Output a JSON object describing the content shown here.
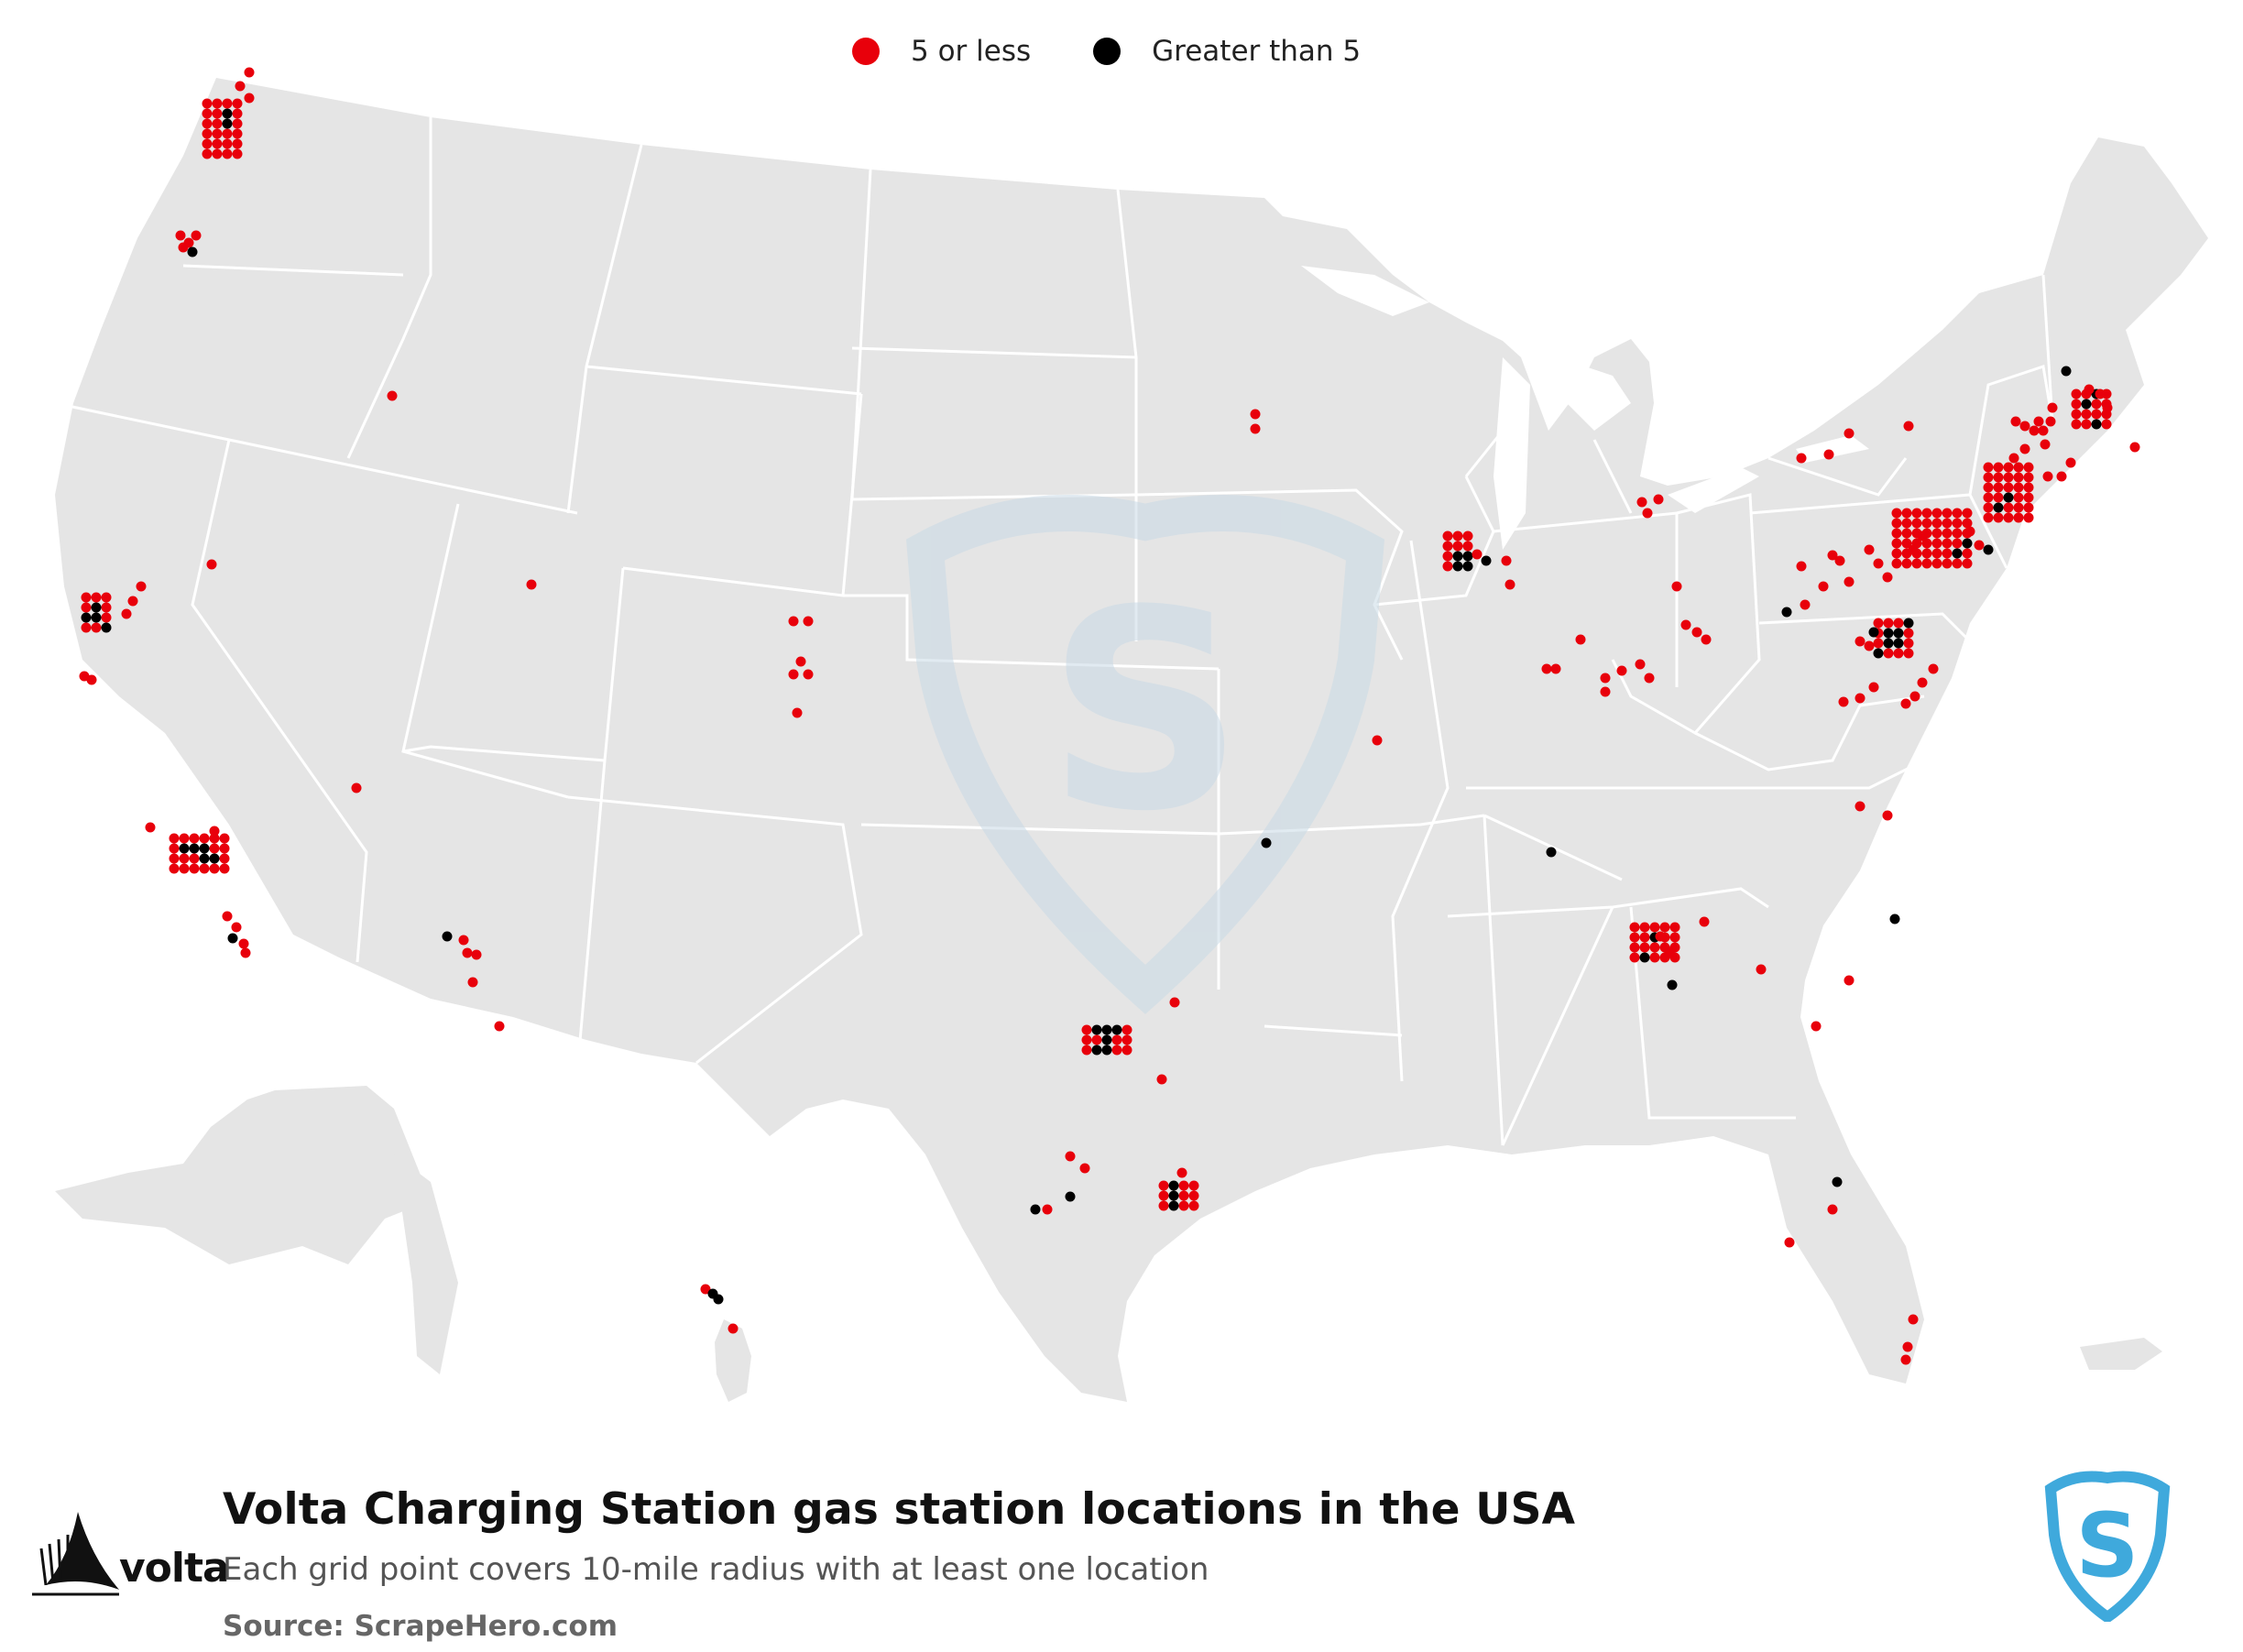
{
  "map": {
    "title": "Volta Charging Station gas station locations in the USA",
    "subtitle": "Each grid point covers 10-mile radius with at least one location",
    "source": "Source: ScrapeHero.com",
    "brand": "volta"
  },
  "legend": {
    "items": [
      {
        "label": "5 or less",
        "color": "#e8000b"
      },
      {
        "label": "Greater than 5",
        "color": "#000000"
      }
    ]
  },
  "colors": {
    "land": "#e5e5e5",
    "borders": "#ffffff",
    "low": "#e8000b",
    "high": "#000000",
    "watermark": "#c9dae6",
    "logo_blue": "#3fa9dc"
  }
}
